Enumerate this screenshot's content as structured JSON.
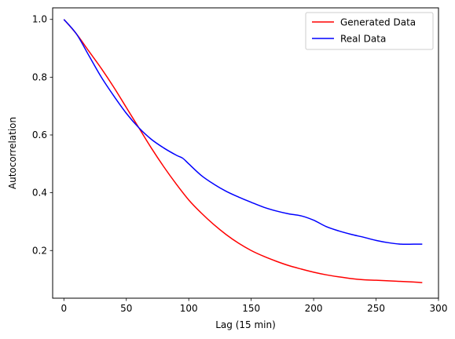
{
  "chart_data": {
    "type": "line",
    "title": "",
    "xlabel": "Lag (15 min)",
    "ylabel": "Autocorrelation",
    "xlim": [
      -9,
      300
    ],
    "ylim": [
      0.035,
      1.04
    ],
    "x_ticks": [
      0,
      50,
      100,
      150,
      200,
      250,
      300
    ],
    "y_ticks": [
      0.2,
      0.4,
      0.6,
      0.8,
      1.0
    ],
    "x_tick_labels": [
      "0",
      "50",
      "100",
      "150",
      "200",
      "250",
      "300"
    ],
    "y_tick_labels": [
      "0.2",
      "0.4",
      "0.6",
      "0.8",
      "1.0"
    ],
    "grid": false,
    "legend_position": "top-right",
    "series": [
      {
        "name": "Generated Data",
        "color": "#ff0000",
        "x": [
          0,
          10,
          20,
          30,
          40,
          50,
          60,
          70,
          80,
          90,
          100,
          110,
          120,
          130,
          140,
          150,
          160,
          170,
          180,
          190,
          200,
          210,
          220,
          230,
          240,
          250,
          260,
          270,
          280,
          287
        ],
        "y": [
          1.0,
          0.95,
          0.89,
          0.83,
          0.765,
          0.695,
          0.625,
          0.555,
          0.49,
          0.43,
          0.375,
          0.33,
          0.29,
          0.255,
          0.225,
          0.2,
          0.18,
          0.163,
          0.148,
          0.136,
          0.125,
          0.116,
          0.109,
          0.103,
          0.099,
          0.097,
          0.095,
          0.093,
          0.091,
          0.089
        ]
      },
      {
        "name": "Real Data",
        "color": "#0000ff",
        "x": [
          0,
          10,
          20,
          30,
          40,
          50,
          60,
          70,
          80,
          90,
          95,
          100,
          110,
          120,
          130,
          140,
          150,
          160,
          170,
          180,
          190,
          200,
          210,
          220,
          230,
          240,
          250,
          260,
          270,
          280,
          287
        ],
        "y": [
          1.0,
          0.95,
          0.875,
          0.8,
          0.735,
          0.675,
          0.625,
          0.585,
          0.555,
          0.53,
          0.52,
          0.5,
          0.46,
          0.43,
          0.405,
          0.385,
          0.367,
          0.35,
          0.337,
          0.327,
          0.32,
          0.305,
          0.283,
          0.268,
          0.256,
          0.246,
          0.235,
          0.227,
          0.222,
          0.222,
          0.222
        ]
      }
    ]
  }
}
